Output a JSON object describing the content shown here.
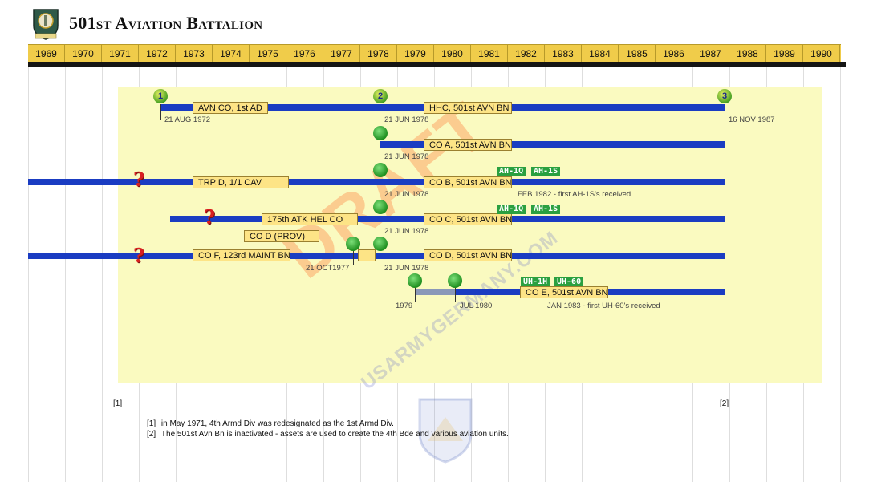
{
  "page": {
    "title": "501st Aviation Battalion"
  },
  "watermark": {
    "draft": "DRAFT",
    "site": "USARMYGERMANY.COM"
  },
  "years": [
    "1969",
    "1970",
    "1971",
    "1972",
    "1973",
    "1974",
    "1975",
    "1976",
    "1977",
    "1978",
    "1979",
    "1980",
    "1981",
    "1982",
    "1983",
    "1984",
    "1985",
    "1986",
    "1987",
    "1988",
    "1989",
    "1990"
  ],
  "milestones": {
    "m1": "1",
    "m2": "2",
    "m3": "3"
  },
  "units": {
    "avn_co": "AVN CO, 1st AD",
    "hhc": "HHC, 501st AVN BN",
    "co_a": "CO A, 501st AVN BN",
    "trp_d": "TRP D, 1/1 CAV",
    "co_b": "CO B, 501st AVN BN",
    "atk": "175th ATK HEL CO",
    "co_c": "CO C, 501st AVN BN",
    "co_d_prov": "CO D (PROV)",
    "co_f": "CO F, 123rd MAINT BN",
    "co_d": "CO D, 501st AVN BN",
    "co_e": "CO E, 501st AVN BN"
  },
  "dates": {
    "d1972": "21 AUG 1972",
    "d1978a": "21 JUN 1978",
    "d1987": "16 NOV 1987",
    "d1978b": "21 JUN 1978",
    "d1978c": "21 JUN 1978",
    "feb1982": "FEB 1982 - first AH-1S's received",
    "d1978d": "21 JUN 1978",
    "oct1977": "21 OCT1977",
    "d1978e": "21 JUN 1978",
    "y1979": "1979",
    "jul1980": "JUL 1980",
    "jan1983": "JAN 1983 - first UH-60's received"
  },
  "aircraft": {
    "b1": "AH-1Q",
    "b2": "AH-1S",
    "c1": "AH-1Q",
    "c2": "AH-1S",
    "e1": "UH-1H",
    "e2": "UH-60"
  },
  "footnotes": {
    "ref1": "[1]",
    "ref2": "[2]",
    "n1_label": "[1]",
    "n1_text": "in May 1971, 4th Armd Div was redesignated as the 1st Armd Div.",
    "n2_label": "[2]",
    "n2_text": "The 501st Avn Bn is inactivated - assets are used to create the 4th Bde and various aviation units."
  },
  "colors": {
    "unit_line": "#1a3cc2",
    "year_bar": "#f0cc4a",
    "highlight": "#fafac0",
    "aircraft_tag": "#2aa040",
    "unknown_origin": "#d82020"
  }
}
